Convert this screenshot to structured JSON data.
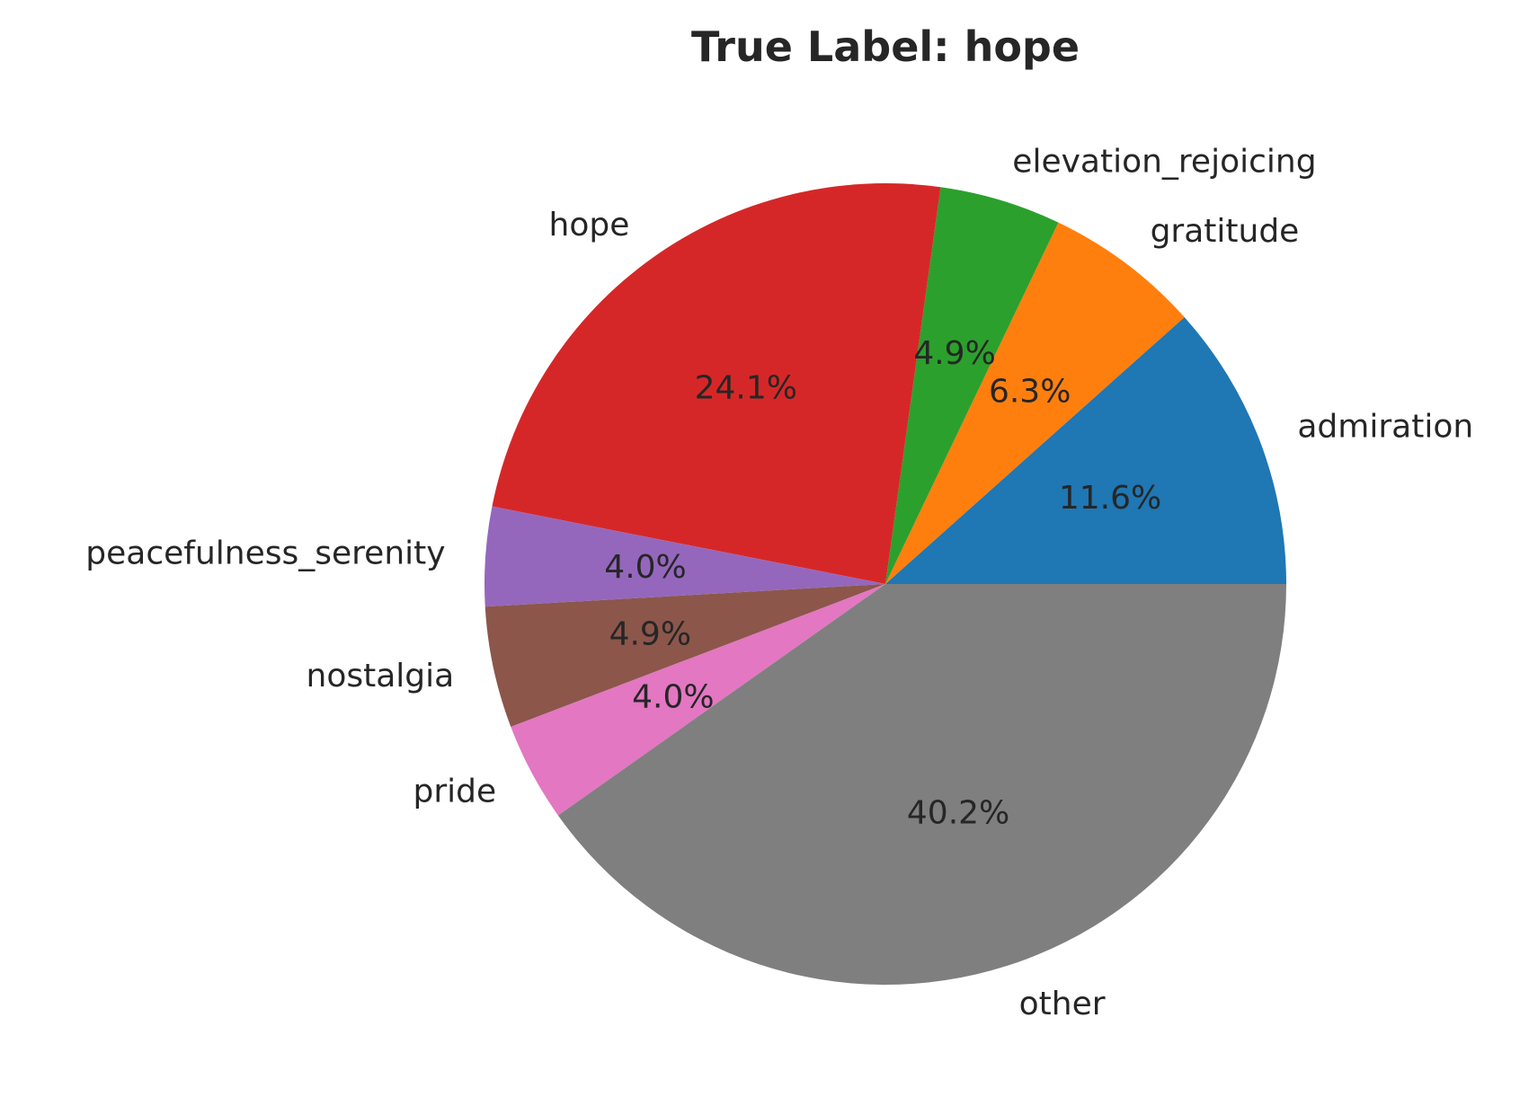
{
  "chart_data": {
    "type": "pie",
    "title": "True Label: hope",
    "start_angle_deg": 0,
    "direction": "counterclockwise",
    "slices": [
      {
        "label": "admiration",
        "value": 11.6,
        "pct_label": "11.6%",
        "color": "#1f77b4"
      },
      {
        "label": "gratitude",
        "value": 6.3,
        "pct_label": "6.3%",
        "color": "#ff7f0e"
      },
      {
        "label": "elevation_rejoicing",
        "value": 4.9,
        "pct_label": "4.9%",
        "color": "#2ca02c"
      },
      {
        "label": "hope",
        "value": 24.1,
        "pct_label": "24.1%",
        "color": "#d62728"
      },
      {
        "label": "peacefulness_serenity",
        "value": 4.0,
        "pct_label": "4.0%",
        "color": "#9467bd"
      },
      {
        "label": "nostalgia",
        "value": 4.9,
        "pct_label": "4.9%",
        "color": "#8c564b"
      },
      {
        "label": "pride",
        "value": 4.0,
        "pct_label": "4.0%",
        "color": "#e377c2"
      },
      {
        "label": "other",
        "value": 40.2,
        "pct_label": "40.2%",
        "color": "#7f7f7f"
      }
    ]
  }
}
